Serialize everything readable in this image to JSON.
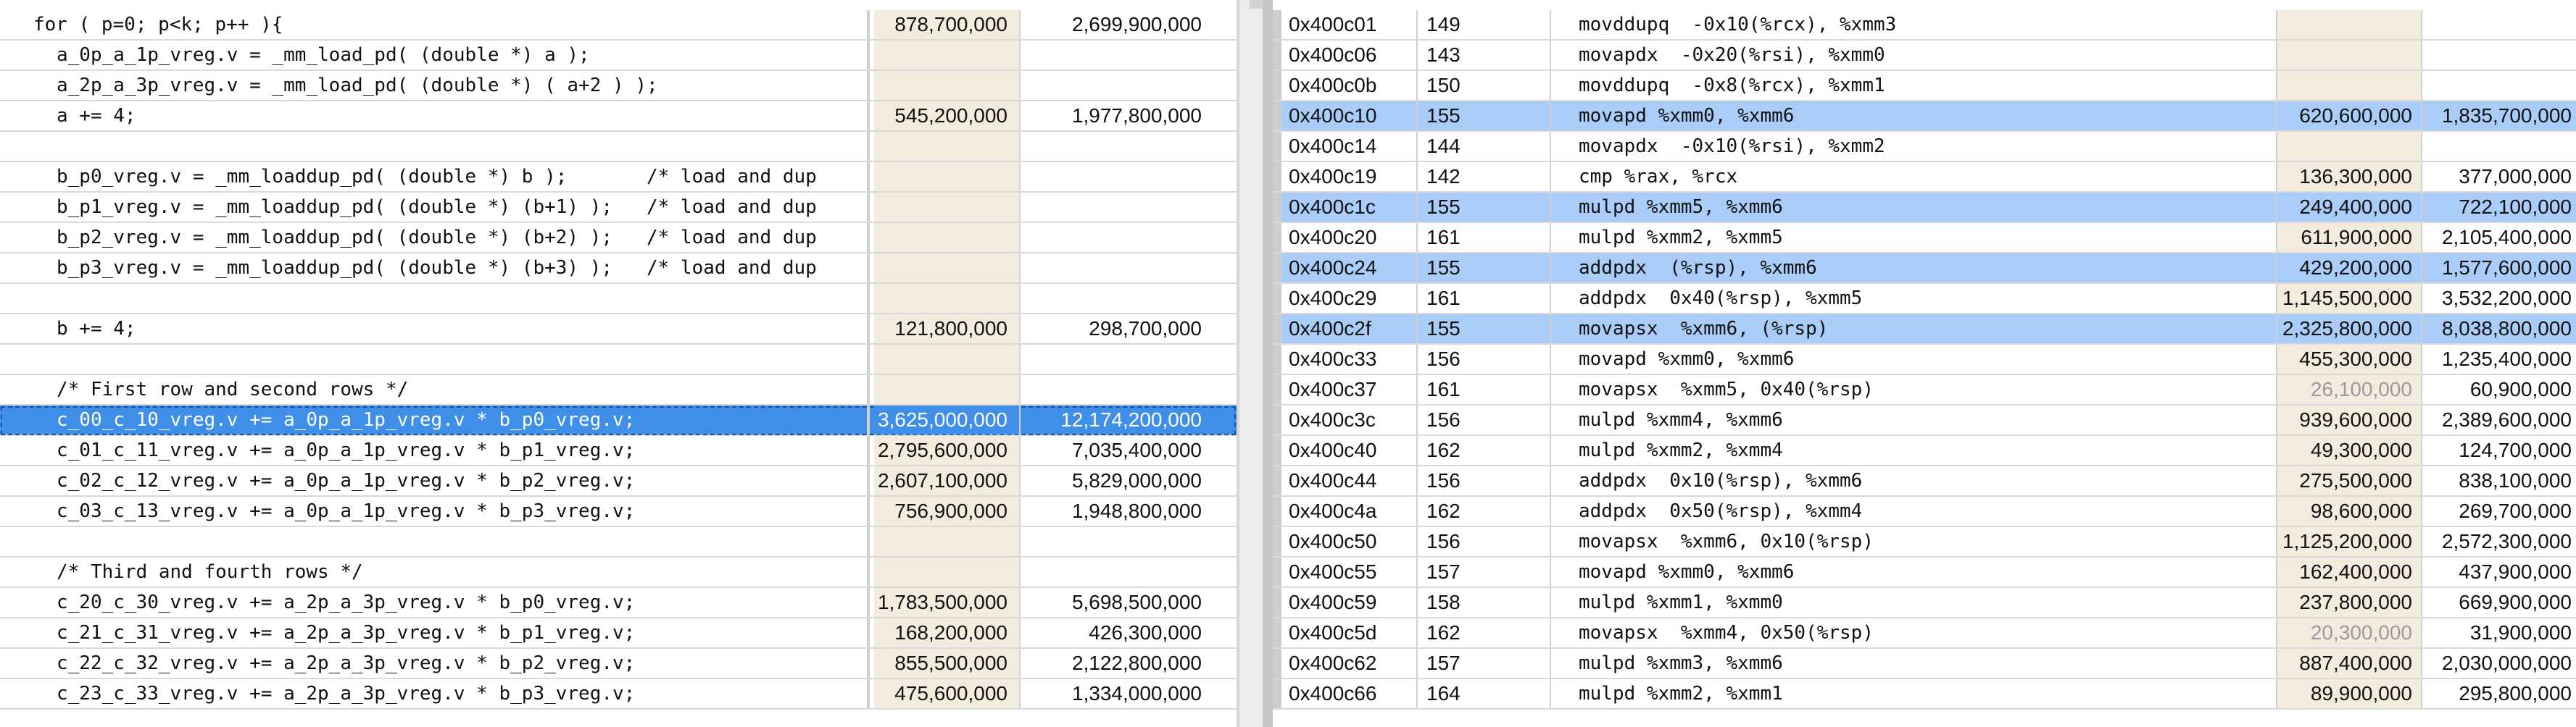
{
  "source_view": {
    "rows": [
      {
        "code": "for ( p=0; p<k; p++ ){",
        "indent": 0,
        "m1": "878,700,000",
        "m2": "2,699,900,000"
      },
      {
        "code": "a_0p_a_1p_vreg.v = _mm_load_pd( (double *) a );",
        "indent": 1,
        "m1": "",
        "m2": ""
      },
      {
        "code": "a_2p_a_3p_vreg.v = _mm_load_pd( (double *) ( a+2 ) );",
        "indent": 1,
        "m1": "",
        "m2": ""
      },
      {
        "code": "a += 4;",
        "indent": 1,
        "m1": "545,200,000",
        "m2": "1,977,800,000"
      },
      {
        "code": "",
        "indent": 0,
        "m1": "",
        "m2": ""
      },
      {
        "code": "b_p0_vreg.v = _mm_loaddup_pd( (double *) b );       /* load and dup",
        "indent": 1,
        "m1": "",
        "m2": ""
      },
      {
        "code": "b_p1_vreg.v = _mm_loaddup_pd( (double *) (b+1) );   /* load and dup",
        "indent": 1,
        "m1": "",
        "m2": ""
      },
      {
        "code": "b_p2_vreg.v = _mm_loaddup_pd( (double *) (b+2) );   /* load and dup",
        "indent": 1,
        "m1": "",
        "m2": ""
      },
      {
        "code": "b_p3_vreg.v = _mm_loaddup_pd( (double *) (b+3) );   /* load and dup",
        "indent": 1,
        "m1": "",
        "m2": ""
      },
      {
        "code": "",
        "indent": 0,
        "m1": "",
        "m2": ""
      },
      {
        "code": "b += 4;",
        "indent": 1,
        "m1": "121,800,000",
        "m2": "298,700,000"
      },
      {
        "code": "",
        "indent": 0,
        "m1": "",
        "m2": ""
      },
      {
        "code": "/* First row and second rows */",
        "indent": 1,
        "m1": "",
        "m2": ""
      },
      {
        "code": "c_00_c_10_vreg.v += a_0p_a_1p_vreg.v * b_p0_vreg.v;",
        "indent": 1,
        "m1": "3,625,000,000",
        "m2": "12,174,200,000",
        "selected": true
      },
      {
        "code": "c_01_c_11_vreg.v += a_0p_a_1p_vreg.v * b_p1_vreg.v;",
        "indent": 1,
        "m1": "2,795,600,000",
        "m2": "7,035,400,000"
      },
      {
        "code": "c_02_c_12_vreg.v += a_0p_a_1p_vreg.v * b_p2_vreg.v;",
        "indent": 1,
        "m1": "2,607,100,000",
        "m2": "5,829,000,000"
      },
      {
        "code": "c_03_c_13_vreg.v += a_0p_a_1p_vreg.v * b_p3_vreg.v;",
        "indent": 1,
        "m1": "756,900,000",
        "m2": "1,948,800,000"
      },
      {
        "code": "",
        "indent": 0,
        "m1": "",
        "m2": ""
      },
      {
        "code": "/* Third and fourth rows */",
        "indent": 1,
        "m1": "",
        "m2": ""
      },
      {
        "code": "c_20_c_30_vreg.v += a_2p_a_3p_vreg.v * b_p0_vreg.v;",
        "indent": 1,
        "m1": "1,783,500,000",
        "m2": "5,698,500,000"
      },
      {
        "code": "c_21_c_31_vreg.v += a_2p_a_3p_vreg.v * b_p1_vreg.v;",
        "indent": 1,
        "m1": "168,200,000",
        "m2": "426,300,000"
      },
      {
        "code": "c_22_c_32_vreg.v += a_2p_a_3p_vreg.v * b_p2_vreg.v;",
        "indent": 1,
        "m1": "855,500,000",
        "m2": "2,122,800,000"
      },
      {
        "code": "c_23_c_33_vreg.v += a_2p_a_3p_vreg.v * b_p3_vreg.v;",
        "indent": 1,
        "m1": "475,600,000",
        "m2": "1,334,000,000"
      }
    ]
  },
  "assembly_view": {
    "rows": [
      {
        "addr": "0x400c01",
        "line": "149",
        "ins": "movddupq  -0x10(%rcx), %xmm3",
        "m1": "",
        "m2": ""
      },
      {
        "addr": "0x400c06",
        "line": "143",
        "ins": "movapdx  -0x20(%rsi), %xmm0",
        "m1": "",
        "m2": ""
      },
      {
        "addr": "0x400c0b",
        "line": "150",
        "ins": "movddupq  -0x8(%rcx), %xmm1",
        "m1": "",
        "m2": ""
      },
      {
        "addr": "0x400c10",
        "line": "155",
        "ins": "movapd %xmm0, %xmm6",
        "m1": "620,600,000",
        "m2": "1,835,700,000",
        "highlight": true
      },
      {
        "addr": "0x400c14",
        "line": "144",
        "ins": "movapdx  -0x10(%rsi), %xmm2",
        "m1": "",
        "m2": ""
      },
      {
        "addr": "0x400c19",
        "line": "142",
        "ins": "cmp %rax, %rcx",
        "m1": "136,300,000",
        "m2": "377,000,000"
      },
      {
        "addr": "0x400c1c",
        "line": "155",
        "ins": "mulpd %xmm5, %xmm6",
        "m1": "249,400,000",
        "m2": "722,100,000",
        "highlight": true
      },
      {
        "addr": "0x400c20",
        "line": "161",
        "ins": "mulpd %xmm2, %xmm5",
        "m1": "611,900,000",
        "m2": "2,105,400,000"
      },
      {
        "addr": "0x400c24",
        "line": "155",
        "ins": "addpdx  (%rsp), %xmm6",
        "m1": "429,200,000",
        "m2": "1,577,600,000",
        "highlight": true
      },
      {
        "addr": "0x400c29",
        "line": "161",
        "ins": "addpdx  0x40(%rsp), %xmm5",
        "m1": "1,145,500,000",
        "m2": "3,532,200,000"
      },
      {
        "addr": "0x400c2f",
        "line": "155",
        "ins": "movapsx  %xmm6, (%rsp)",
        "m1": "2,325,800,000",
        "m2": "8,038,800,000",
        "highlight": true
      },
      {
        "addr": "0x400c33",
        "line": "156",
        "ins": "movapd %xmm0, %xmm6",
        "m1": "455,300,000",
        "m2": "1,235,400,000"
      },
      {
        "addr": "0x400c37",
        "line": "161",
        "ins": "movapsx  %xmm5, 0x40(%rsp)",
        "m1": "26,100,000",
        "m2": "60,900,000",
        "faint": true
      },
      {
        "addr": "0x400c3c",
        "line": "156",
        "ins": "mulpd %xmm4, %xmm6",
        "m1": "939,600,000",
        "m2": "2,389,600,000"
      },
      {
        "addr": "0x400c40",
        "line": "162",
        "ins": "mulpd %xmm2, %xmm4",
        "m1": "49,300,000",
        "m2": "124,700,000"
      },
      {
        "addr": "0x400c44",
        "line": "156",
        "ins": "addpdx  0x10(%rsp), %xmm6",
        "m1": "275,500,000",
        "m2": "838,100,000"
      },
      {
        "addr": "0x400c4a",
        "line": "162",
        "ins": "addpdx  0x50(%rsp), %xmm4",
        "m1": "98,600,000",
        "m2": "269,700,000"
      },
      {
        "addr": "0x400c50",
        "line": "156",
        "ins": "movapsx  %xmm6, 0x10(%rsp)",
        "m1": "1,125,200,000",
        "m2": "2,572,300,000"
      },
      {
        "addr": "0x400c55",
        "line": "157",
        "ins": "movapd %xmm0, %xmm6",
        "m1": "162,400,000",
        "m2": "437,900,000"
      },
      {
        "addr": "0x400c59",
        "line": "158",
        "ins": "mulpd %xmm1, %xmm0",
        "m1": "237,800,000",
        "m2": "669,900,000"
      },
      {
        "addr": "0x400c5d",
        "line": "162",
        "ins": "movapsx  %xmm4, 0x50(%rsp)",
        "m1": "20,300,000",
        "m2": "31,900,000",
        "faint": true
      },
      {
        "addr": "0x400c62",
        "line": "157",
        "ins": "mulpd %xmm3, %xmm6",
        "m1": "887,400,000",
        "m2": "2,030,000,000"
      },
      {
        "addr": "0x400c66",
        "line": "164",
        "ins": "mulpd %xmm2, %xmm1",
        "m1": "89,900,000",
        "m2": "295,800,000"
      }
    ]
  }
}
